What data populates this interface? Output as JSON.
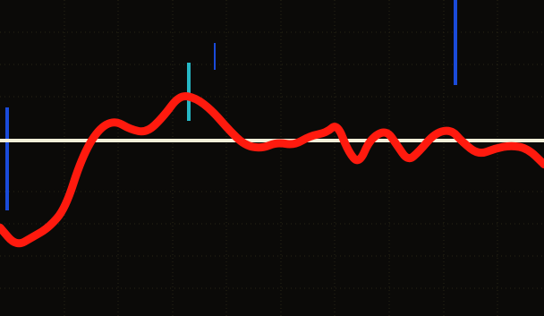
{
  "display": {
    "background_color": "#0b0a08",
    "grid_color": "#2a2516",
    "baseline_color": "#f2efd8",
    "trace_color": "#ff1a0e",
    "artifact_blue": "#1d57ff",
    "artifact_cyan": "#2bd6e6"
  },
  "trace": {
    "points": [
      [
        0.0,
        0.72
      ],
      [
        0.03,
        0.78
      ],
      [
        0.06,
        0.75
      ],
      [
        0.09,
        0.72
      ],
      [
        0.12,
        0.66
      ],
      [
        0.15,
        0.5
      ],
      [
        0.18,
        0.41
      ],
      [
        0.21,
        0.38
      ],
      [
        0.24,
        0.41
      ],
      [
        0.27,
        0.42
      ],
      [
        0.3,
        0.37
      ],
      [
        0.33,
        0.3
      ],
      [
        0.36,
        0.31
      ],
      [
        0.39,
        0.35
      ],
      [
        0.42,
        0.41
      ],
      [
        0.45,
        0.46
      ],
      [
        0.48,
        0.47
      ],
      [
        0.51,
        0.45
      ],
      [
        0.54,
        0.46
      ],
      [
        0.57,
        0.43
      ],
      [
        0.6,
        0.42
      ],
      [
        0.62,
        0.39
      ],
      [
        0.64,
        0.48
      ],
      [
        0.66,
        0.52
      ],
      [
        0.68,
        0.44
      ],
      [
        0.71,
        0.41
      ],
      [
        0.73,
        0.46
      ],
      [
        0.75,
        0.51
      ],
      [
        0.77,
        0.48
      ],
      [
        0.8,
        0.42
      ],
      [
        0.83,
        0.41
      ],
      [
        0.85,
        0.45
      ],
      [
        0.88,
        0.49
      ],
      [
        0.91,
        0.47
      ],
      [
        0.94,
        0.46
      ],
      [
        0.97,
        0.47
      ],
      [
        1.0,
        0.52
      ]
    ]
  }
}
